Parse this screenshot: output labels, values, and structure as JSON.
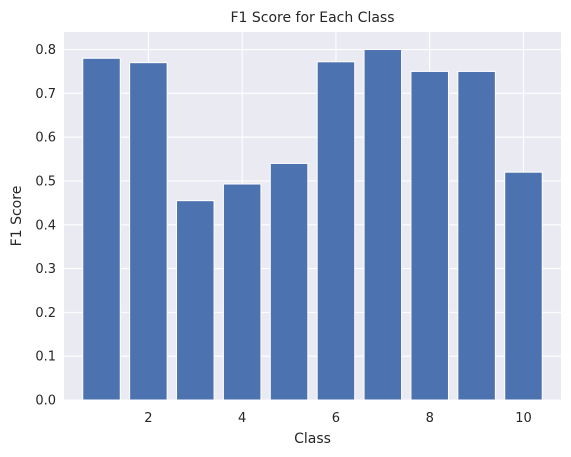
{
  "chart_data": {
    "type": "bar",
    "title": "F1 Score for Each Class",
    "xlabel": "Class",
    "ylabel": "F1 Score",
    "x": [
      1,
      2,
      3,
      4,
      5,
      6,
      7,
      8,
      9,
      10
    ],
    "values": [
      0.78,
      0.77,
      0.455,
      0.493,
      0.54,
      0.772,
      0.8,
      0.75,
      0.75,
      0.52
    ],
    "xlim": [
      0.2,
      10.8
    ],
    "ylim": [
      0,
      0.84
    ],
    "xticks": [
      2,
      4,
      6,
      8,
      10
    ],
    "yticks": [
      0.0,
      0.1,
      0.2,
      0.3,
      0.4,
      0.5,
      0.6,
      0.7,
      0.8
    ],
    "grid": true,
    "colors": {
      "bar": "#4c72b0",
      "background": "#eaeaf2",
      "grid": "#ffffff"
    }
  }
}
